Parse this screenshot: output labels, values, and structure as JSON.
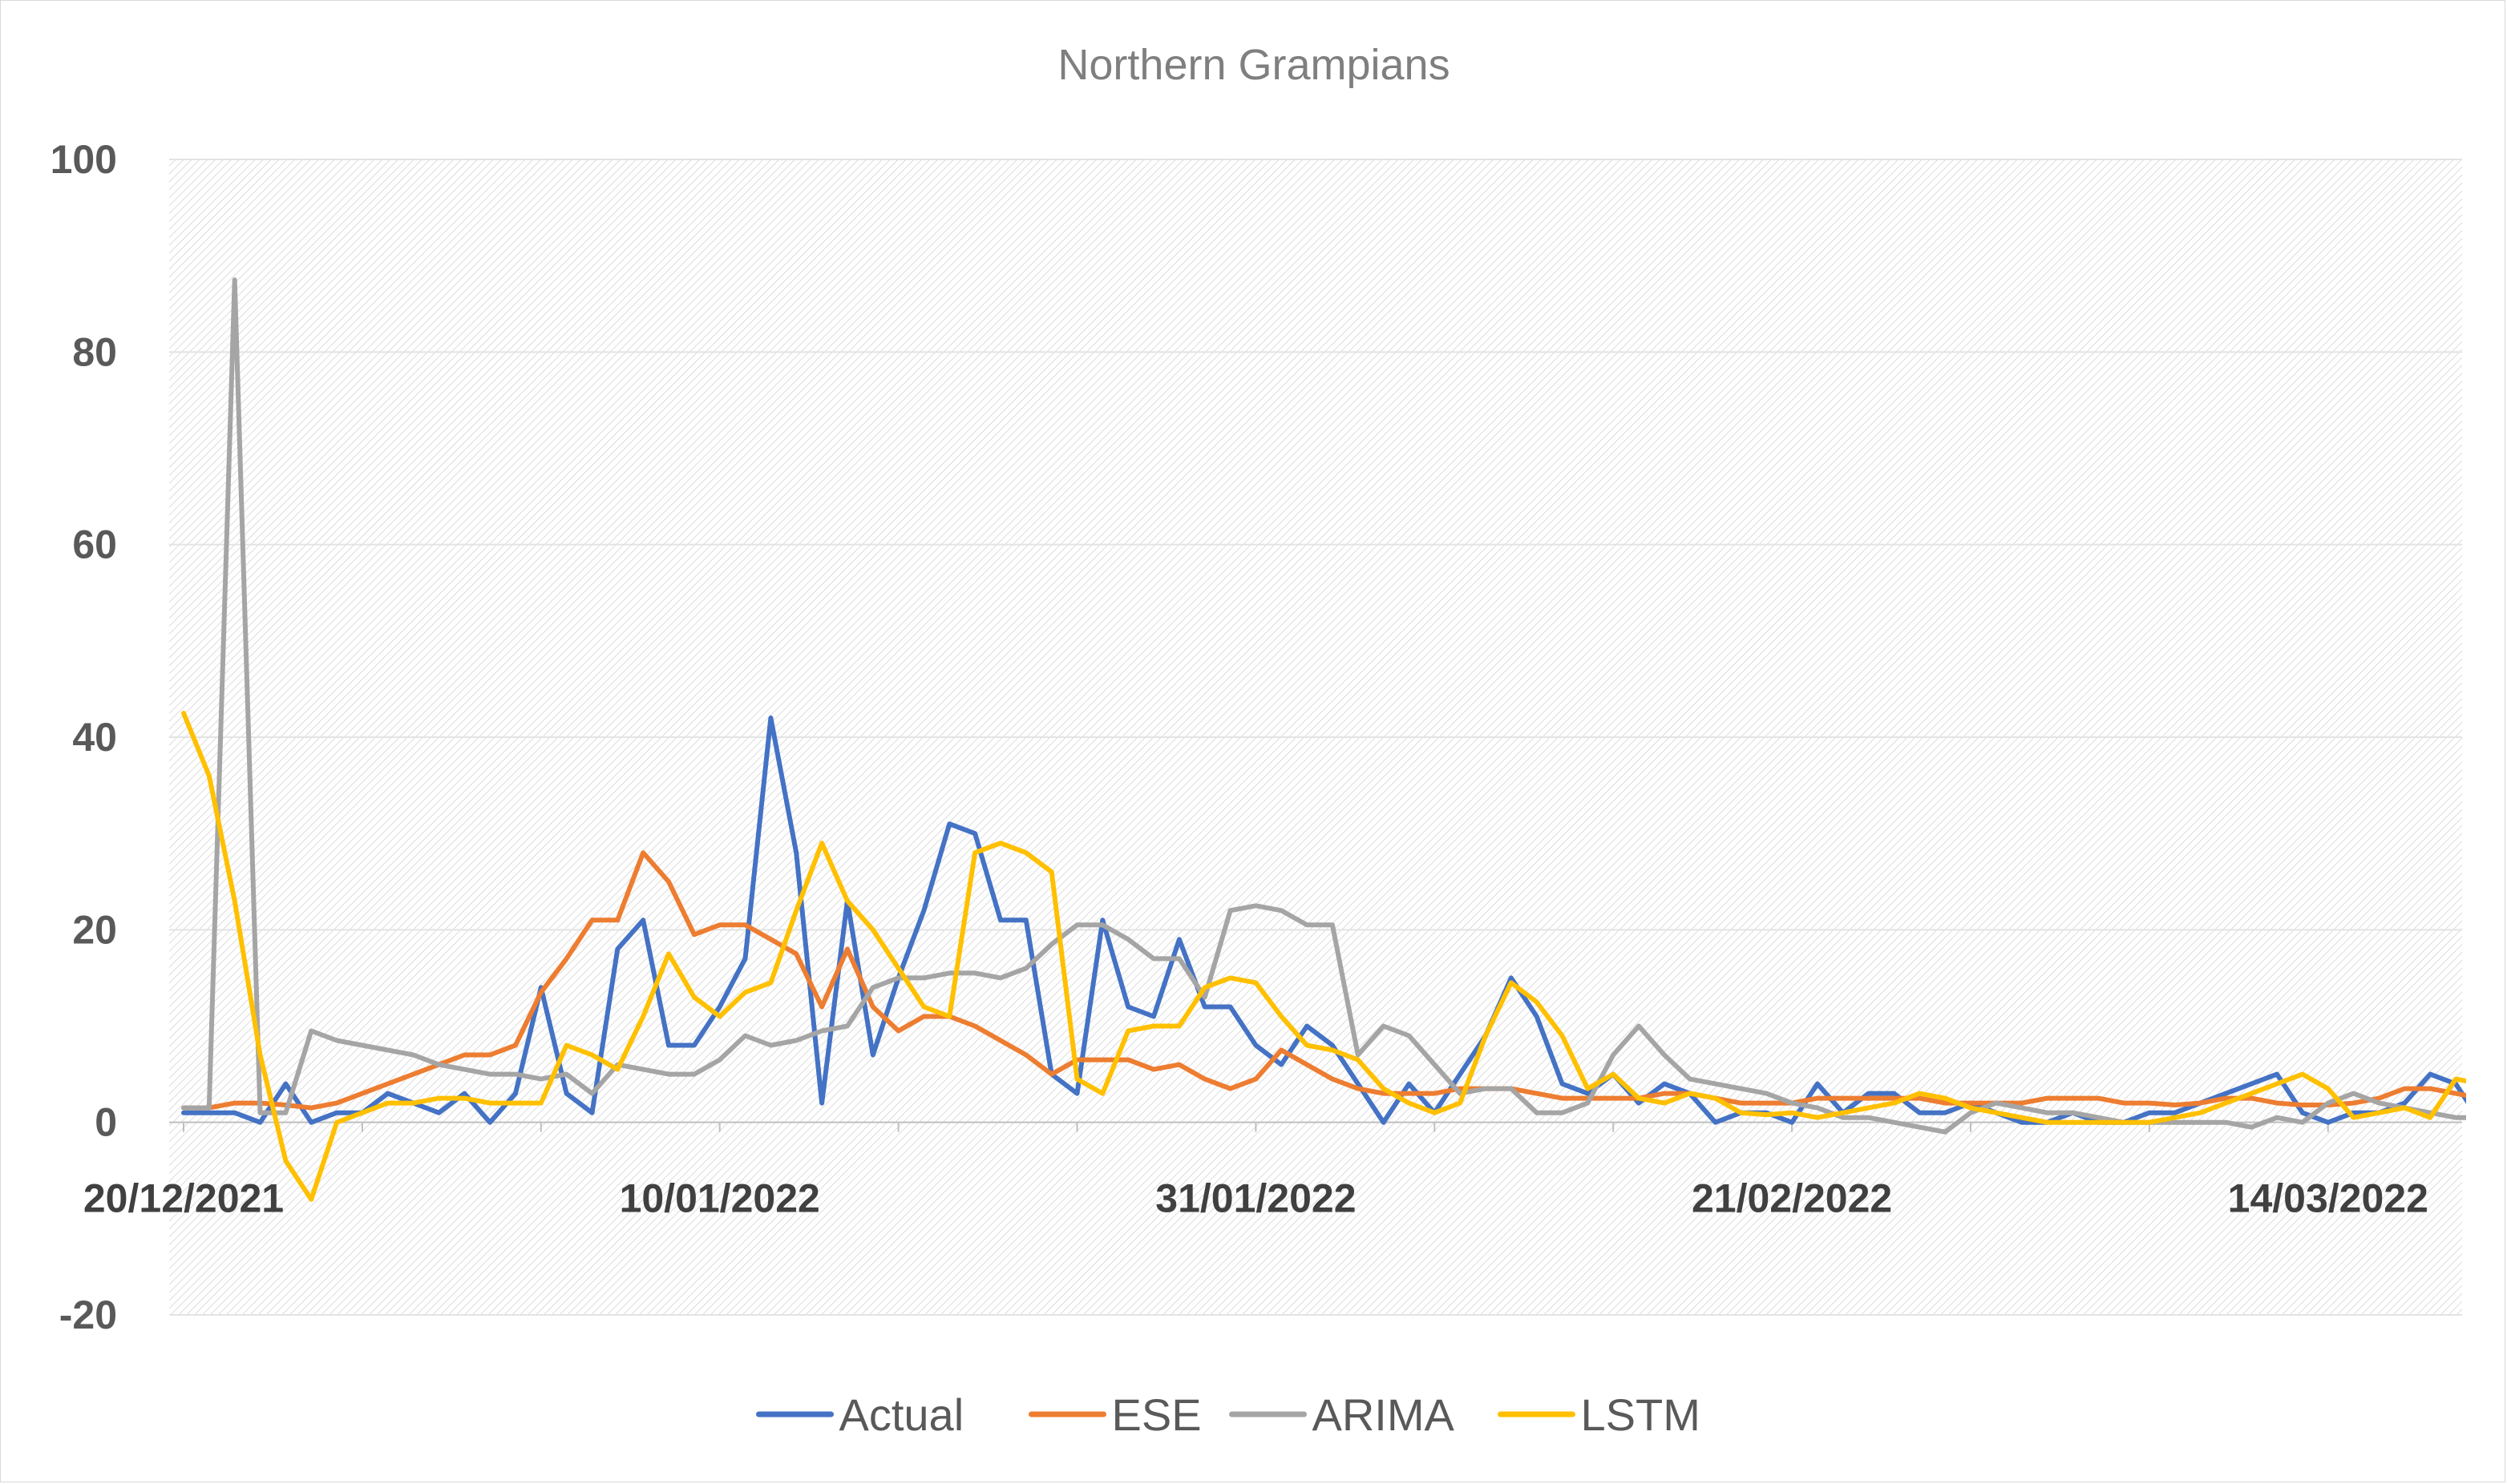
{
  "chart_data": {
    "type": "line",
    "title": "Northern Grampians",
    "xlabel": "",
    "ylabel": "",
    "ylim": [
      -20,
      100
    ],
    "yticks": [
      100,
      80,
      60,
      40,
      20,
      0,
      -20
    ],
    "ytick_labels": [
      "100",
      "80",
      "60",
      "40",
      "20",
      "0",
      "-20"
    ],
    "xlim": [
      0,
      89
    ],
    "x_ticks": [
      {
        "index": 0,
        "label": "20/12/2021"
      },
      {
        "index": 21,
        "label": "10/01/2022"
      },
      {
        "index": 42,
        "label": "31/01/2022"
      },
      {
        "index": 63,
        "label": "21/02/2022"
      },
      {
        "index": 84,
        "label": "14/03/2022"
      }
    ],
    "grid": true,
    "legend_position": "bottom",
    "series": [
      {
        "name": "Actual",
        "color": "#4472c4",
        "values": [
          1,
          1,
          1,
          0,
          4,
          0,
          1,
          1,
          3,
          2,
          1,
          3,
          0,
          3,
          14,
          3,
          1,
          18,
          21,
          8,
          8,
          12,
          17,
          42,
          28,
          2,
          23,
          7,
          15,
          22,
          31,
          30,
          21,
          21,
          5,
          3,
          21,
          12,
          11,
          19,
          12,
          12,
          8,
          6,
          10,
          8,
          4,
          0,
          4,
          1,
          5,
          9,
          15,
          11,
          4,
          3,
          5,
          2,
          4,
          3,
          0,
          1,
          1,
          0,
          4,
          1,
          3,
          3,
          1,
          1,
          2,
          1,
          0,
          0,
          1,
          0,
          0,
          1,
          1,
          2,
          3,
          4,
          5,
          1,
          0,
          1,
          1,
          2,
          5,
          4,
          0
        ]
      },
      {
        "name": "ESE",
        "color": "#ed7d31",
        "values": [
          1.5,
          1.5,
          2,
          2,
          1.8,
          1.5,
          2,
          3,
          4,
          5,
          6,
          7,
          7,
          8,
          13.5,
          17,
          21,
          21,
          28,
          25,
          19.5,
          20.5,
          20.5,
          19,
          17.5,
          12,
          18,
          12,
          9.5,
          11,
          11,
          10,
          8.5,
          7,
          5,
          6.5,
          6.5,
          6.5,
          5.5,
          6,
          4.5,
          3.5,
          4.5,
          7.5,
          6,
          4.5,
          3.5,
          3,
          3,
          3,
          3.5,
          3.5,
          3.5,
          3,
          2.5,
          2.5,
          2.5,
          2.5,
          3,
          3,
          2.5,
          2,
          2,
          2,
          2.5,
          2.5,
          2.5,
          2.5,
          2.5,
          2,
          2,
          2,
          2,
          2.5,
          2.5,
          2.5,
          2,
          2,
          1.8,
          2,
          2.5,
          2.5,
          2,
          1.8,
          1.8,
          2,
          2.5,
          3.5,
          3.5,
          3,
          2.5
        ]
      },
      {
        "name": "ARIMA",
        "color": "#a5a5a5",
        "values": [
          1.5,
          1.5,
          87.5,
          1,
          1,
          9.5,
          8.5,
          8,
          7.5,
          7,
          6,
          5.5,
          5,
          5,
          4.5,
          5,
          3,
          6,
          5.5,
          5,
          5,
          6.5,
          9,
          8,
          8.5,
          9.5,
          10,
          14,
          15,
          15,
          15.5,
          15.5,
          15,
          16,
          18.5,
          20.5,
          20.5,
          19,
          17,
          17,
          13,
          22,
          22.5,
          22,
          20.5,
          20.5,
          7,
          10,
          9,
          6,
          3,
          3.5,
          3.5,
          1,
          1,
          2,
          7,
          10,
          7,
          4.5,
          4,
          3.5,
          3,
          2,
          1.5,
          0.5,
          0.5,
          0,
          -0.5,
          -1,
          1,
          2,
          1.5,
          1,
          1,
          0.5,
          0,
          0,
          0,
          0,
          0,
          -0.5,
          0.5,
          0,
          2,
          3,
          2,
          1.5,
          1,
          0.5,
          0.5,
          1,
          1.5
        ]
      },
      {
        "name": "LSTM",
        "color": "#ffc000",
        "values": [
          42.5,
          36,
          23,
          7,
          -4,
          -8,
          0,
          1,
          2,
          2,
          2.5,
          2.5,
          2,
          2,
          2,
          8,
          7,
          5.5,
          11,
          17.5,
          13,
          11,
          13.5,
          14.5,
          22,
          29,
          23,
          20,
          16,
          12,
          11,
          28,
          29,
          28,
          26,
          4.5,
          3,
          9.5,
          10,
          10,
          14,
          15,
          14.5,
          11,
          8,
          7.5,
          6.5,
          3.5,
          2,
          1,
          2,
          9,
          14.5,
          12.5,
          9,
          3.5,
          5,
          2.5,
          2,
          3,
          2.5,
          1,
          0.8,
          1,
          0.5,
          1,
          1.5,
          2,
          3,
          2.5,
          1.5,
          1,
          0.5,
          0,
          0,
          0,
          0,
          0,
          0.5,
          1,
          2,
          3,
          4,
          5,
          3.5,
          0.5,
          1,
          1.5,
          0.5,
          4.5,
          4
        ]
      }
    ]
  },
  "legend": {
    "items": [
      {
        "label": "Actual",
        "color": "#4472c4"
      },
      {
        "label": "ESE",
        "color": "#ed7d31"
      },
      {
        "label": "ARIMA",
        "color": "#a5a5a5"
      },
      {
        "label": "LSTM",
        "color": "#ffc000"
      }
    ]
  }
}
